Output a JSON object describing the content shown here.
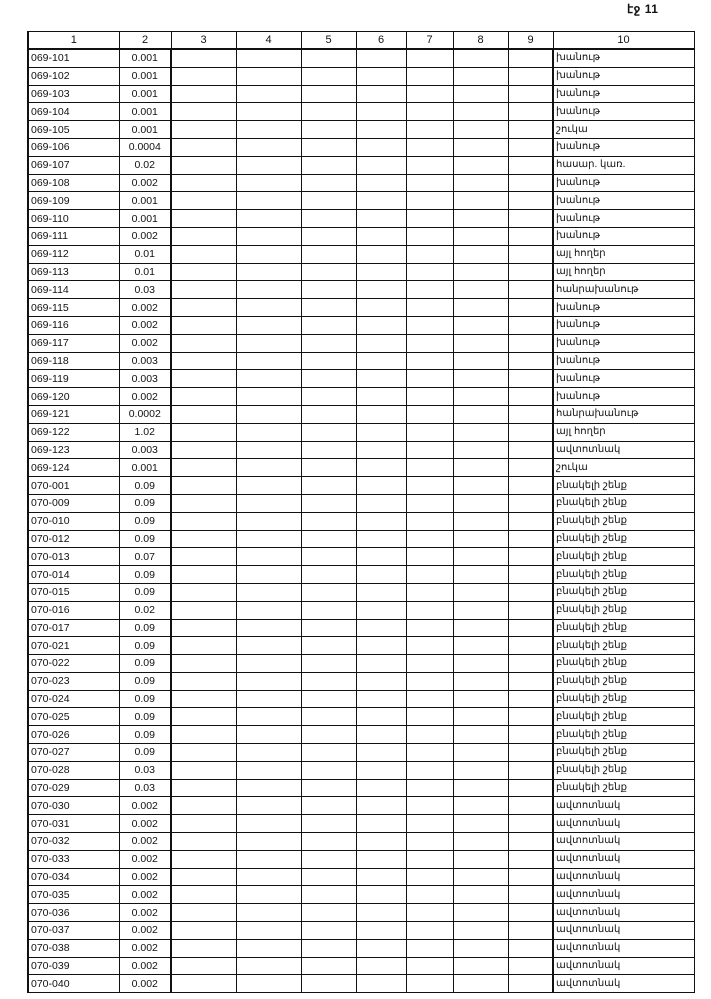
{
  "page_label": "էջ 11",
  "columns": [
    "1",
    "2",
    "3",
    "4",
    "5",
    "6",
    "7",
    "8",
    "9",
    "10"
  ],
  "rows": [
    [
      "069-101",
      "0.001",
      "խանութ"
    ],
    [
      "069-102",
      "0.001",
      "խանութ"
    ],
    [
      "069-103",
      "0.001",
      "խանութ"
    ],
    [
      "069-104",
      "0.001",
      "խանութ"
    ],
    [
      "069-105",
      "0.001",
      "շուկա"
    ],
    [
      "069-106",
      "0.0004",
      "խանութ"
    ],
    [
      "069-107",
      "0.02",
      "հասար. կառ."
    ],
    [
      "069-108",
      "0.002",
      "խանութ"
    ],
    [
      "069-109",
      "0.001",
      "խանութ"
    ],
    [
      "069-110",
      "0.001",
      "խանութ"
    ],
    [
      "069-111",
      "0.002",
      "խանութ"
    ],
    [
      "069-112",
      "0.01",
      "այլ հողեր"
    ],
    [
      "069-113",
      "0.01",
      "այլ հողեր"
    ],
    [
      "069-114",
      "0.03",
      "հանրախանութ"
    ],
    [
      "069-115",
      "0.002",
      "խանութ"
    ],
    [
      "069-116",
      "0.002",
      "խանութ"
    ],
    [
      "069-117",
      "0.002",
      "խանութ"
    ],
    [
      "069-118",
      "0.003",
      "խանութ"
    ],
    [
      "069-119",
      "0.003",
      "խանութ"
    ],
    [
      "069-120",
      "0.002",
      "խանութ"
    ],
    [
      "069-121",
      "0.0002",
      "հանրախանութ"
    ],
    [
      "069-122",
      "1.02",
      "այլ հողեր"
    ],
    [
      "069-123",
      "0.003",
      "ավտոտնակ"
    ],
    [
      "069-124",
      "0.001",
      "շուկա"
    ],
    [
      "070-001",
      "0.09",
      "բնակելի շենք"
    ],
    [
      "070-009",
      "0.09",
      "բնակելի շենք"
    ],
    [
      "070-010",
      "0.09",
      "բնակելի շենք"
    ],
    [
      "070-012",
      "0.09",
      "բնակելի շենք"
    ],
    [
      "070-013",
      "0.07",
      "բնակելի շենք"
    ],
    [
      "070-014",
      "0.09",
      "բնակելի շենք"
    ],
    [
      "070-015",
      "0.09",
      "բնակելի շենք"
    ],
    [
      "070-016",
      "0.02",
      "բնակելի շենք"
    ],
    [
      "070-017",
      "0.09",
      "բնակելի շենք"
    ],
    [
      "070-021",
      "0.09",
      "բնակելի շենք"
    ],
    [
      "070-022",
      "0.09",
      "բնակելի շենք"
    ],
    [
      "070-023",
      "0.09",
      "բնակելի շենք"
    ],
    [
      "070-024",
      "0.09",
      "բնակելի շենք"
    ],
    [
      "070-025",
      "0.09",
      "բնակելի շենք"
    ],
    [
      "070-026",
      "0.09",
      "բնակելի շենք"
    ],
    [
      "070-027",
      "0.09",
      "բնակելի շենք"
    ],
    [
      "070-028",
      "0.03",
      "բնակելի շենք"
    ],
    [
      "070-029",
      "0.03",
      "բնակելի շենք"
    ],
    [
      "070-030",
      "0.002",
      "ավտոտնակ"
    ],
    [
      "070-031",
      "0.002",
      "ավտոտնակ"
    ],
    [
      "070-032",
      "0.002",
      "ավտոտնակ"
    ],
    [
      "070-033",
      "0.002",
      "ավտոտնակ"
    ],
    [
      "070-034",
      "0.002",
      "ավտոտնակ"
    ],
    [
      "070-035",
      "0.002",
      "ավտոտնակ"
    ],
    [
      "070-036",
      "0.002",
      "ավտոտնակ"
    ],
    [
      "070-037",
      "0.002",
      "ավտոտնակ"
    ],
    [
      "070-038",
      "0.002",
      "ավտոտնակ"
    ],
    [
      "070-039",
      "0.002",
      "ավտոտնակ"
    ],
    [
      "070-040",
      "0.002",
      "ավտոտնակ"
    ]
  ]
}
